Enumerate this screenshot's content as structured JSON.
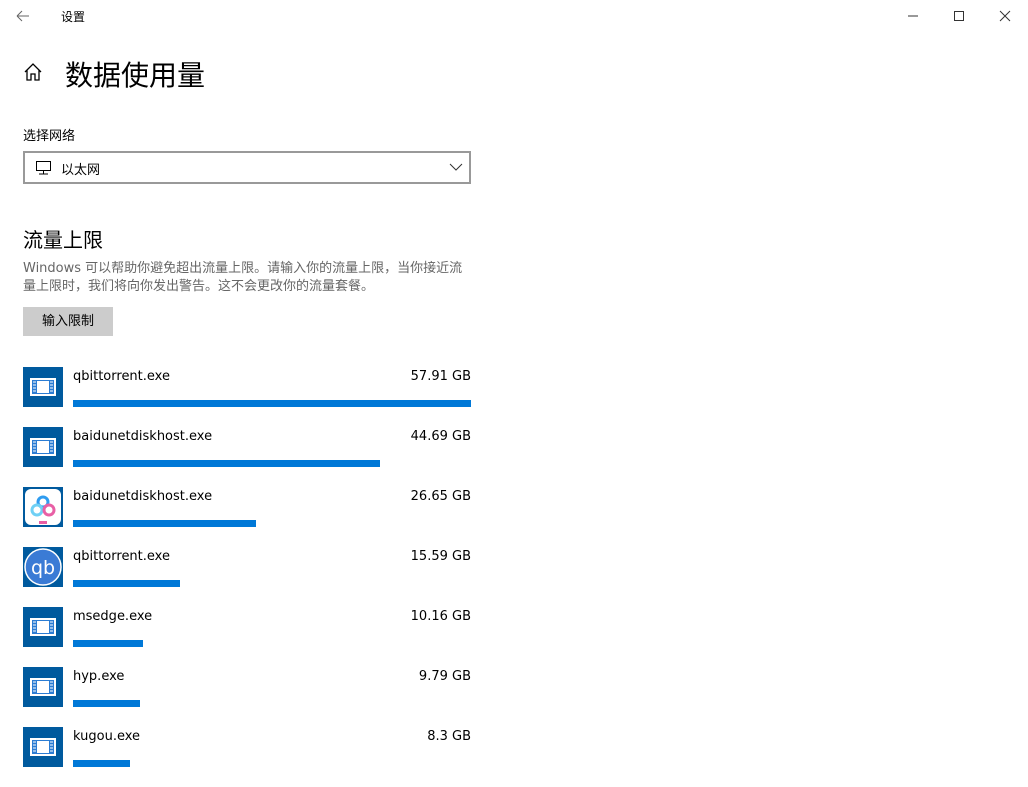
{
  "window": {
    "title": "设置"
  },
  "page": {
    "title": "数据使用量"
  },
  "network": {
    "label": "选择网络",
    "selected": "以太网"
  },
  "limit": {
    "title": "流量上限",
    "description": "Windows 可以帮助你避免超出流量上限。请输入你的流量上限，当你接近流量上限时，我们将向你发出警告。这不会更改你的流量套餐。",
    "button": "输入限制"
  },
  "apps": [
    {
      "name": "qbittorrent.exe",
      "usage": 57.91,
      "usage_label": "57.91 GB"
    },
    {
      "name": "baidunetdiskhost.exe",
      "usage": 44.69,
      "usage_label": "44.69 GB"
    },
    {
      "name": "baidunetdiskhost.exe",
      "usage": 26.65,
      "usage_label": "26.65 GB"
    },
    {
      "name": "qbittorrent.exe",
      "usage": 15.59,
      "usage_label": "15.59 GB",
      "icon_text": "qb"
    },
    {
      "name": "msedge.exe",
      "usage": 10.16,
      "usage_label": "10.16 GB"
    },
    {
      "name": "hyp.exe",
      "usage": 9.79,
      "usage_label": "9.79 GB"
    },
    {
      "name": "kugou.exe",
      "usage": 8.3,
      "usage_label": "8.3 GB"
    }
  ]
}
